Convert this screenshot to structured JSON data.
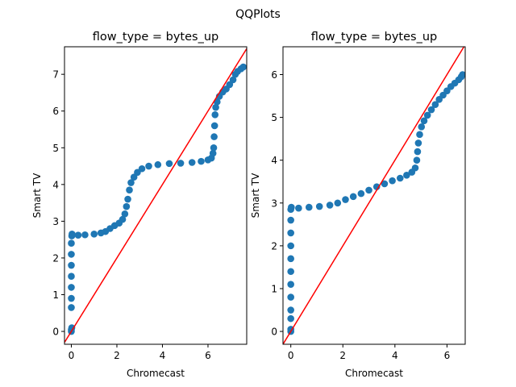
{
  "figure": {
    "suptitle": "QQPlots"
  },
  "colors": {
    "points": "#1f77b4",
    "reference_line": "#ff0000",
    "axes": "#000000"
  },
  "chart_data": [
    {
      "type": "scatter",
      "title": "flow_type = bytes_up",
      "xlabel": "Chromecast",
      "ylabel": "Smart TV",
      "xlim": [
        -0.3,
        7.7
      ],
      "ylim": [
        -0.35,
        7.75
      ],
      "xticks": [
        "0",
        "2",
        "4",
        "6"
      ],
      "xtick_values": [
        0,
        2,
        4,
        6
      ],
      "yticks": [
        "0",
        "1",
        "2",
        "3",
        "4",
        "5",
        "6",
        "7"
      ],
      "ytick_values": [
        0,
        1,
        2,
        3,
        4,
        5,
        6,
        7
      ],
      "reference_line": "y = x",
      "series": [
        {
          "marker": "circle",
          "points": [
            [
              0,
              0
            ],
            [
              0,
              0.05
            ],
            [
              0.02,
              0.1
            ],
            [
              0,
              0.65
            ],
            [
              0,
              0.9
            ],
            [
              0,
              1.2
            ],
            [
              0,
              1.5
            ],
            [
              0,
              1.8
            ],
            [
              0,
              2.1
            ],
            [
              0,
              2.4
            ],
            [
              0.02,
              2.6
            ],
            [
              0.03,
              2.65
            ],
            [
              0.3,
              2.62
            ],
            [
              0.6,
              2.63
            ],
            [
              1.0,
              2.65
            ],
            [
              1.3,
              2.68
            ],
            [
              1.5,
              2.72
            ],
            [
              1.7,
              2.8
            ],
            [
              1.9,
              2.88
            ],
            [
              2.1,
              2.95
            ],
            [
              2.25,
              3.05
            ],
            [
              2.35,
              3.2
            ],
            [
              2.42,
              3.4
            ],
            [
              2.48,
              3.6
            ],
            [
              2.55,
              3.85
            ],
            [
              2.62,
              4.05
            ],
            [
              2.75,
              4.2
            ],
            [
              2.9,
              4.33
            ],
            [
              3.1,
              4.43
            ],
            [
              3.4,
              4.5
            ],
            [
              3.8,
              4.54
            ],
            [
              4.3,
              4.57
            ],
            [
              4.8,
              4.58
            ],
            [
              5.3,
              4.6
            ],
            [
              5.7,
              4.63
            ],
            [
              6.0,
              4.67
            ],
            [
              6.15,
              4.72
            ],
            [
              6.22,
              4.85
            ],
            [
              6.25,
              5.0
            ],
            [
              6.27,
              5.3
            ],
            [
              6.29,
              5.6
            ],
            [
              6.31,
              5.9
            ],
            [
              6.34,
              6.1
            ],
            [
              6.4,
              6.25
            ],
            [
              6.5,
              6.4
            ],
            [
              6.65,
              6.52
            ],
            [
              6.8,
              6.6
            ],
            [
              6.95,
              6.72
            ],
            [
              7.1,
              6.85
            ],
            [
              7.2,
              7.0
            ],
            [
              7.3,
              7.08
            ],
            [
              7.45,
              7.15
            ],
            [
              7.55,
              7.2
            ]
          ]
        }
      ]
    },
    {
      "type": "scatter",
      "title": "flow_type = bytes_up",
      "xlabel": "Chromecast",
      "ylabel": "Smart TV",
      "xlim": [
        -0.3,
        6.7
      ],
      "ylim": [
        -0.3,
        6.65
      ],
      "xticks": [
        "0",
        "2",
        "4",
        "6"
      ],
      "xtick_values": [
        0,
        2,
        4,
        6
      ],
      "yticks": [
        "0",
        "1",
        "2",
        "3",
        "4",
        "5",
        "6"
      ],
      "ytick_values": [
        0,
        1,
        2,
        3,
        4,
        5,
        6
      ],
      "reference_line": "y = x",
      "series": [
        {
          "marker": "circle",
          "points": [
            [
              0,
              0
            ],
            [
              0,
              0.05
            ],
            [
              0,
              0.3
            ],
            [
              0,
              0.5
            ],
            [
              0,
              0.8
            ],
            [
              0,
              1.1
            ],
            [
              0,
              1.4
            ],
            [
              0,
              1.7
            ],
            [
              0,
              2.0
            ],
            [
              0,
              2.3
            ],
            [
              0,
              2.6
            ],
            [
              0,
              2.85
            ],
            [
              0.02,
              2.9
            ],
            [
              0.3,
              2.88
            ],
            [
              0.7,
              2.9
            ],
            [
              1.1,
              2.92
            ],
            [
              1.5,
              2.95
            ],
            [
              1.8,
              3.0
            ],
            [
              2.1,
              3.08
            ],
            [
              2.4,
              3.15
            ],
            [
              2.7,
              3.22
            ],
            [
              3.0,
              3.3
            ],
            [
              3.3,
              3.38
            ],
            [
              3.6,
              3.45
            ],
            [
              3.9,
              3.52
            ],
            [
              4.2,
              3.58
            ],
            [
              4.45,
              3.65
            ],
            [
              4.65,
              3.72
            ],
            [
              4.78,
              3.82
            ],
            [
              4.84,
              4.0
            ],
            [
              4.87,
              4.2
            ],
            [
              4.9,
              4.4
            ],
            [
              4.95,
              4.6
            ],
            [
              5.02,
              4.78
            ],
            [
              5.12,
              4.92
            ],
            [
              5.25,
              5.05
            ],
            [
              5.4,
              5.18
            ],
            [
              5.55,
              5.3
            ],
            [
              5.7,
              5.42
            ],
            [
              5.85,
              5.52
            ],
            [
              6.0,
              5.62
            ],
            [
              6.15,
              5.72
            ],
            [
              6.3,
              5.8
            ],
            [
              6.45,
              5.88
            ],
            [
              6.55,
              5.95
            ],
            [
              6.6,
              6.0
            ]
          ]
        }
      ]
    }
  ]
}
